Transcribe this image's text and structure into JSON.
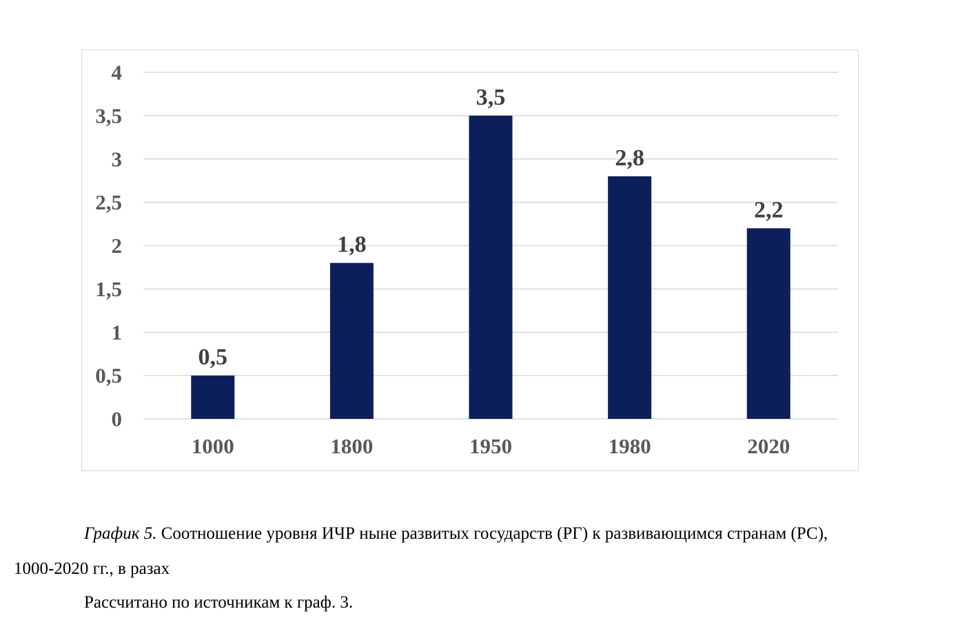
{
  "chart_data": {
    "type": "bar",
    "categories": [
      "1000",
      "1800",
      "1950",
      "1980",
      "2020"
    ],
    "values": [
      0.5,
      1.8,
      3.5,
      2.8,
      2.2
    ],
    "value_labels": [
      "0,5",
      "1,8",
      "3,5",
      "2,8",
      "2,2"
    ],
    "y_ticks": [
      0,
      0.5,
      1,
      1.5,
      2,
      2.5,
      3,
      3.5,
      4
    ],
    "y_tick_labels": [
      "0",
      "0,5",
      "1",
      "1,5",
      "2",
      "2,5",
      "3",
      "3,5",
      "4"
    ],
    "ylim": [
      0,
      4
    ],
    "grid": true,
    "legend": "none",
    "bar_color": "#0c1f5b",
    "grid_color": "#d9d9d9"
  },
  "caption": {
    "prefix": "График 5.",
    "line1": " Соотношение уровня ИЧР ныне развитых государств (РГ) к развивающимся странам (РС),",
    "line2": "1000-2020 гг., в разах",
    "source": "Рассчитано по источникам к граф. 3."
  }
}
